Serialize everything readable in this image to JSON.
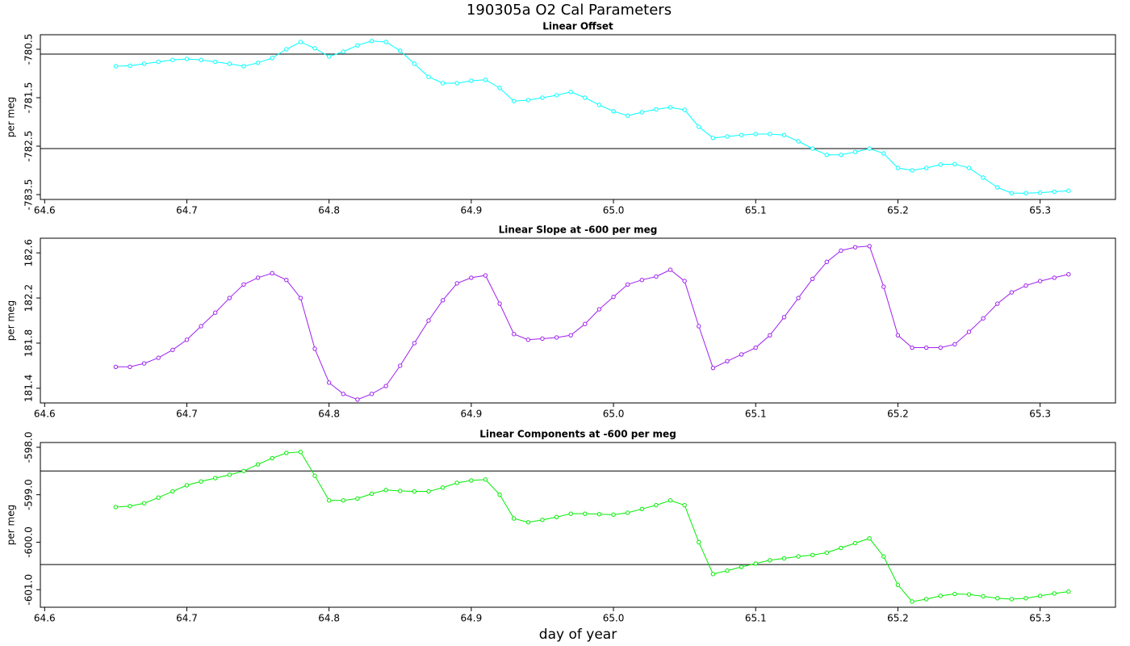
{
  "title": "190305a   O2 Cal Parameters",
  "chart_data": [
    {
      "type": "line",
      "title": "Linear Offset",
      "ylabel": "per meg",
      "color": "#00ffff",
      "xlim": [
        64.597,
        65.353
      ],
      "xticks": [
        64.6,
        64.7,
        64.8,
        64.9,
        {
          "value": 65,
          "label": "65.0"
        },
        65.1,
        65.2,
        65.3
      ],
      "ylim": [
        -783.6,
        -780.2
      ],
      "yticks": [
        -780.5,
        -781.5,
        -782.5,
        -783.5
      ],
      "hlines": [
        -780.6,
        -782.55
      ],
      "x": [
        64.65,
        64.66,
        64.67,
        64.68,
        64.69,
        64.7,
        64.71,
        64.72,
        64.73,
        64.74,
        64.75,
        64.76,
        64.77,
        64.78,
        64.79,
        64.8,
        64.81,
        64.82,
        64.83,
        64.84,
        64.85,
        64.86,
        64.87,
        64.88,
        64.89,
        64.9,
        64.91,
        64.92,
        64.93,
        64.94,
        64.95,
        64.96,
        64.97,
        64.98,
        64.99,
        65.0,
        65.01,
        65.02,
        65.03,
        65.04,
        65.05,
        65.06,
        65.07,
        65.08,
        65.09,
        65.1,
        65.11,
        65.12,
        65.13,
        65.14,
        65.15,
        65.16,
        65.17,
        65.18,
        65.19,
        65.2,
        65.21,
        65.22,
        65.23,
        65.24,
        65.25,
        65.26,
        65.27,
        65.28,
        65.29,
        65.3,
        65.31,
        65.32
      ],
      "values": [
        -780.85,
        -780.84,
        -780.8,
        -780.76,
        -780.72,
        -780.7,
        -780.72,
        -780.76,
        -780.8,
        -780.85,
        -780.78,
        -780.68,
        -780.5,
        -780.35,
        -780.48,
        -780.65,
        -780.55,
        -780.42,
        -780.33,
        -780.35,
        -780.53,
        -780.8,
        -781.07,
        -781.2,
        -781.2,
        -781.15,
        -781.13,
        -781.3,
        -781.57,
        -781.55,
        -781.5,
        -781.45,
        -781.38,
        -781.5,
        -781.65,
        -781.78,
        -781.87,
        -781.8,
        -781.74,
        -781.7,
        -781.75,
        -782.1,
        -782.33,
        -782.3,
        -782.27,
        -782.25,
        -782.25,
        -782.27,
        -782.4,
        -782.55,
        -782.68,
        -782.68,
        -782.62,
        -782.55,
        -782.65,
        -782.95,
        -783.0,
        -782.95,
        -782.88,
        -782.87,
        -782.95,
        -783.15,
        -783.35,
        -783.47,
        -783.47,
        -783.46,
        -783.44,
        -783.42
      ]
    },
    {
      "type": "line",
      "title": "Linear Slope at -600 per meg",
      "ylabel": "per meg",
      "color": "#a020f0",
      "xlim": [
        64.597,
        65.353
      ],
      "xticks": [
        64.6,
        64.7,
        64.8,
        64.9,
        {
          "value": 65,
          "label": "65.0"
        },
        65.1,
        65.2,
        65.3
      ],
      "ylim": [
        181.27,
        182.73
      ],
      "yticks": [
        182.6,
        182.2,
        181.8,
        181.4
      ],
      "x": [
        64.65,
        64.66,
        64.67,
        64.68,
        64.69,
        64.7,
        64.71,
        64.72,
        64.73,
        64.74,
        64.75,
        64.76,
        64.77,
        64.78,
        64.79,
        64.8,
        64.81,
        64.82,
        64.83,
        64.84,
        64.85,
        64.86,
        64.87,
        64.88,
        64.89,
        64.9,
        64.91,
        64.92,
        64.93,
        64.94,
        64.95,
        64.96,
        64.97,
        64.98,
        64.99,
        65.0,
        65.01,
        65.02,
        65.03,
        65.04,
        65.05,
        65.06,
        65.07,
        65.08,
        65.09,
        65.1,
        65.11,
        65.12,
        65.13,
        65.14,
        65.15,
        65.16,
        65.17,
        65.18,
        65.19,
        65.2,
        65.21,
        65.22,
        65.23,
        65.24,
        65.25,
        65.26,
        65.27,
        65.28,
        65.29,
        65.3,
        65.31,
        65.32
      ],
      "values": [
        181.59,
        181.59,
        181.62,
        181.67,
        181.74,
        181.83,
        181.95,
        182.07,
        182.2,
        182.32,
        182.38,
        182.42,
        182.36,
        182.2,
        181.75,
        181.45,
        181.35,
        181.3,
        181.35,
        181.42,
        181.6,
        181.8,
        182.0,
        182.18,
        182.33,
        182.38,
        182.4,
        182.15,
        181.88,
        181.83,
        181.84,
        181.85,
        181.87,
        181.97,
        182.1,
        182.21,
        182.32,
        182.36,
        182.39,
        182.45,
        182.35,
        181.95,
        181.58,
        181.64,
        181.7,
        181.76,
        181.87,
        182.03,
        182.2,
        182.37,
        182.52,
        182.62,
        182.65,
        182.66,
        182.3,
        181.87,
        181.76,
        181.76,
        181.76,
        181.79,
        181.9,
        182.02,
        182.15,
        182.25,
        182.31,
        182.35,
        182.38,
        182.41
      ]
    },
    {
      "type": "line",
      "title": "Linear Components at -600 per meg",
      "ylabel": "per meg",
      "xlabel": "day of year",
      "color": "#00ee00",
      "xlim": [
        64.597,
        65.353
      ],
      "xticks": [
        64.6,
        64.7,
        64.8,
        64.9,
        {
          "value": 65,
          "label": "65.0"
        },
        65.1,
        65.2,
        65.3
      ],
      "ylim": [
        -601.37,
        -597.9
      ],
      "yticks": [
        {
          "value": -598,
          "label": "-598.0"
        },
        {
          "value": -599,
          "label": "-599.0"
        },
        {
          "value": -600,
          "label": "-600.0"
        },
        {
          "value": -601,
          "label": "-601.0"
        }
      ],
      "hlines": [
        -598.5,
        -600.47
      ],
      "x": [
        64.65,
        64.66,
        64.67,
        64.68,
        64.69,
        64.7,
        64.71,
        64.72,
        64.73,
        64.74,
        64.75,
        64.76,
        64.77,
        64.78,
        64.79,
        64.8,
        64.81,
        64.82,
        64.83,
        64.84,
        64.85,
        64.86,
        64.87,
        64.88,
        64.89,
        64.9,
        64.91,
        64.92,
        64.93,
        64.94,
        64.95,
        64.96,
        64.97,
        64.98,
        64.99,
        65.0,
        65.01,
        65.02,
        65.03,
        65.04,
        65.05,
        65.06,
        65.07,
        65.08,
        65.09,
        65.1,
        65.11,
        65.12,
        65.13,
        65.14,
        65.15,
        65.16,
        65.17,
        65.18,
        65.19,
        65.2,
        65.21,
        65.22,
        65.23,
        65.24,
        65.25,
        65.26,
        65.27,
        65.28,
        65.29,
        65.3,
        65.31,
        65.32
      ],
      "values": [
        -599.26,
        -599.24,
        -599.18,
        -599.06,
        -598.93,
        -598.8,
        -598.72,
        -598.65,
        -598.58,
        -598.5,
        -598.36,
        -598.23,
        -598.12,
        -598.1,
        -598.6,
        -599.12,
        -599.12,
        -599.08,
        -598.98,
        -598.9,
        -598.92,
        -598.93,
        -598.93,
        -598.85,
        -598.75,
        -598.7,
        -598.68,
        -599.0,
        -599.5,
        -599.58,
        -599.53,
        -599.47,
        -599.4,
        -599.4,
        -599.41,
        -599.42,
        -599.38,
        -599.3,
        -599.22,
        -599.12,
        -599.22,
        -600.0,
        -600.67,
        -600.6,
        -600.52,
        -600.45,
        -600.38,
        -600.34,
        -600.3,
        -600.27,
        -600.22,
        -600.12,
        -600.02,
        -599.92,
        -600.3,
        -600.9,
        -601.25,
        -601.2,
        -601.13,
        -601.09,
        -601.1,
        -601.14,
        -601.18,
        -601.2,
        -601.18,
        -601.13,
        -601.08,
        -601.04
      ]
    }
  ]
}
